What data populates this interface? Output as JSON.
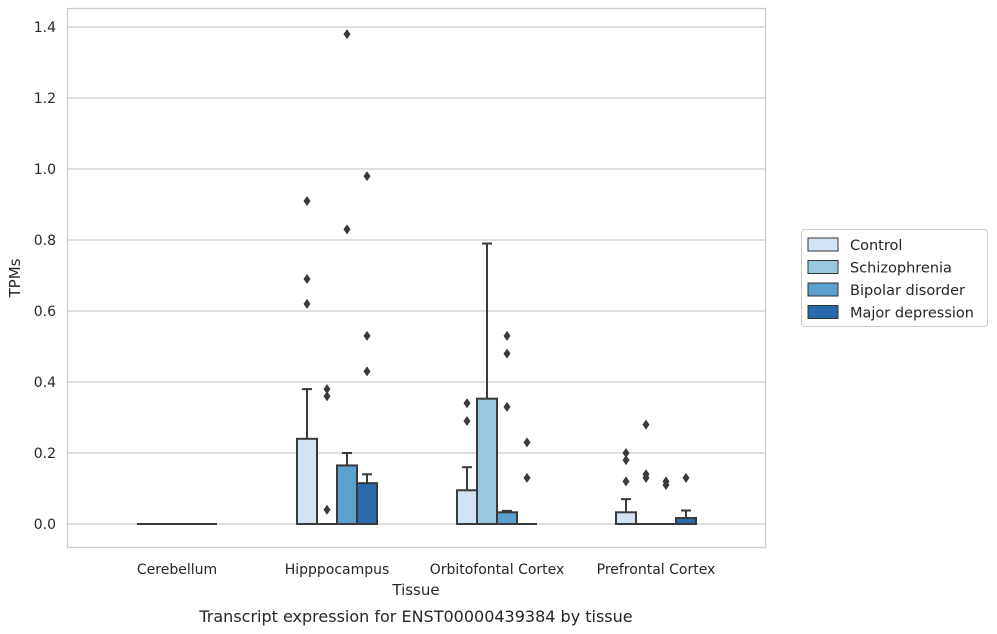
{
  "chart_data": {
    "type": "box",
    "xlabel": "Tissue",
    "ylabel": "TPMs",
    "caption": "Transcript expression for ENST00000439384 by tissue",
    "ylim": [
      -0.065,
      1.45
    ],
    "yticks": [
      0.0,
      0.2,
      0.4,
      0.6,
      0.8,
      1.0,
      1.2,
      1.4
    ],
    "ytick_labels": [
      "0.0",
      "0.2",
      "0.4",
      "0.6",
      "0.8",
      "1.0",
      "1.2",
      "1.4"
    ],
    "grid": "horizontal",
    "legend_position": "right",
    "categories": [
      "Cerebellum",
      "Hipppocampus",
      "Orbitofontal Cortex",
      "Prefrontal Cortex"
    ],
    "series": [
      {
        "name": "Control",
        "color": "#d2e3f3",
        "boxes": [
          {
            "q1": 0,
            "median": 0,
            "q3": 0,
            "whisker_low": 0,
            "whisker_high": 0,
            "outliers": []
          },
          {
            "q1": 0,
            "median": 0,
            "q3": 0.24,
            "whisker_low": 0,
            "whisker_high": 0.38,
            "outliers": [
              0.62,
              0.69,
              0.91
            ]
          },
          {
            "q1": 0,
            "median": 0,
            "q3": 0.095,
            "whisker_low": 0,
            "whisker_high": 0.16,
            "outliers": [
              0.29,
              0.34
            ]
          },
          {
            "q1": 0,
            "median": 0,
            "q3": 0.033,
            "whisker_low": 0,
            "whisker_high": 0.07,
            "outliers": [
              0.12,
              0.18,
              0.2
            ]
          }
        ]
      },
      {
        "name": "Schizophrenia",
        "color": "#9ac7e0",
        "boxes": [
          {
            "q1": 0,
            "median": 0,
            "q3": 0,
            "whisker_low": 0,
            "whisker_high": 0,
            "outliers": []
          },
          {
            "q1": 0,
            "median": 0,
            "q3": 0,
            "whisker_low": 0,
            "whisker_high": 0,
            "outliers": [
              0.04,
              0.36,
              0.38
            ]
          },
          {
            "q1": 0,
            "median": 0,
            "q3": 0.353,
            "whisker_low": 0,
            "whisker_high": 0.79,
            "outliers": []
          },
          {
            "q1": 0,
            "median": 0,
            "q3": 0,
            "whisker_low": 0,
            "whisker_high": 0,
            "outliers": [
              0.13,
              0.14,
              0.28
            ]
          }
        ]
      },
      {
        "name": "Bipolar disorder",
        "color": "#5ba0cf",
        "boxes": [
          {
            "q1": 0,
            "median": 0,
            "q3": 0,
            "whisker_low": 0,
            "whisker_high": 0,
            "outliers": []
          },
          {
            "q1": 0,
            "median": 0,
            "q3": 0.165,
            "whisker_low": 0,
            "whisker_high": 0.2,
            "outliers": [
              0.83,
              1.38
            ]
          },
          {
            "q1": 0,
            "median": 0,
            "q3": 0.033,
            "whisker_low": 0,
            "whisker_high": 0.037,
            "outliers": [
              0.33,
              0.48,
              0.53
            ]
          },
          {
            "q1": 0,
            "median": 0,
            "q3": 0,
            "whisker_low": 0,
            "whisker_high": 0,
            "outliers": [
              0.11,
              0.12
            ]
          }
        ]
      },
      {
        "name": "Major depression",
        "color": "#2a6aab",
        "boxes": [
          {
            "q1": 0,
            "median": 0,
            "q3": 0,
            "whisker_low": 0,
            "whisker_high": 0,
            "outliers": []
          },
          {
            "q1": 0,
            "median": 0,
            "q3": 0.115,
            "whisker_low": 0,
            "whisker_high": 0.14,
            "outliers": [
              0.43,
              0.53,
              0.98
            ]
          },
          {
            "q1": 0,
            "median": 0,
            "q3": 0,
            "whisker_low": 0,
            "whisker_high": 0,
            "outliers": [
              0.13,
              0.23
            ]
          },
          {
            "q1": 0,
            "median": 0,
            "q3": 0.017,
            "whisker_low": 0,
            "whisker_high": 0.038,
            "outliers": [
              0.13
            ]
          }
        ]
      }
    ]
  }
}
